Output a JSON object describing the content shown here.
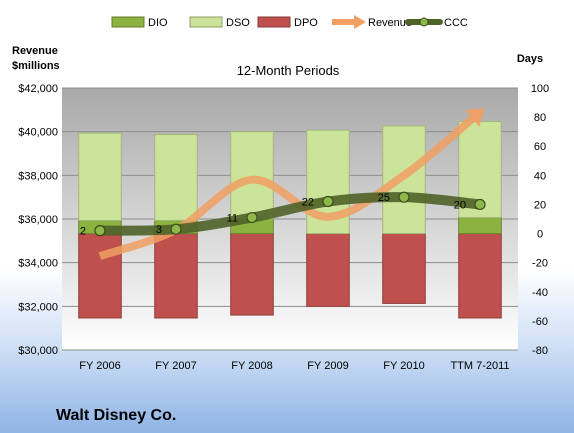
{
  "company": "Walt Disney Co.",
  "chart_data": {
    "type": "bar",
    "subtitle": "12-Month Periods",
    "categories": [
      "FY 2006",
      "FY 2007",
      "FY 2008",
      "FY 2009",
      "FY 2010",
      "TTM 7-2011"
    ],
    "ylabel_left": "Revenue\n$millions",
    "ylabel_right": "Days",
    "y_left_range": [
      30000,
      42000
    ],
    "y_left_ticks": [
      30000,
      32000,
      34000,
      36000,
      38000,
      40000,
      42000
    ],
    "y_left_tick_labels": [
      "$30,000",
      "$32,000",
      "$34,000",
      "$36,000",
      "$38,000",
      "$40,000",
      "$42,000"
    ],
    "y_right_range": [
      -80,
      100
    ],
    "y_right_ticks": [
      -80,
      -60,
      -40,
      -20,
      0,
      20,
      40,
      60,
      80,
      100
    ],
    "y_right_tick_labels": [
      "-80",
      "-60",
      "-40",
      "-20",
      "0",
      "20",
      "40",
      "60",
      "80",
      "100"
    ],
    "grid": true,
    "legend_position": "top",
    "series": [
      {
        "name": "DIO",
        "kind": "stacked-bar-positive",
        "axis": "right",
        "color": "#8cb33f",
        "values": [
          9,
          9,
          10,
          0,
          0,
          11
        ]
      },
      {
        "name": "DSO",
        "kind": "stacked-bar-positive",
        "axis": "right",
        "color": "#cce39a",
        "values": [
          60,
          59,
          60,
          71,
          74,
          66
        ]
      },
      {
        "name": "DPO",
        "kind": "bar-negative",
        "axis": "right",
        "color": "#c0504d",
        "values": [
          -58,
          -58,
          -56,
          -50,
          -48,
          -58
        ]
      },
      {
        "name": "Revenue",
        "kind": "line",
        "axis": "left",
        "color": "#f0a063",
        "values": [
          34300,
          35500,
          37800,
          36100,
          38000,
          40900
        ]
      },
      {
        "name": "CCC",
        "kind": "line",
        "axis": "right",
        "color": "#4f6228",
        "values": [
          2,
          3,
          11,
          22,
          25,
          20
        ]
      }
    ],
    "ccc_labels": [
      "2",
      "3",
      "11",
      "22",
      "25",
      "20"
    ]
  }
}
